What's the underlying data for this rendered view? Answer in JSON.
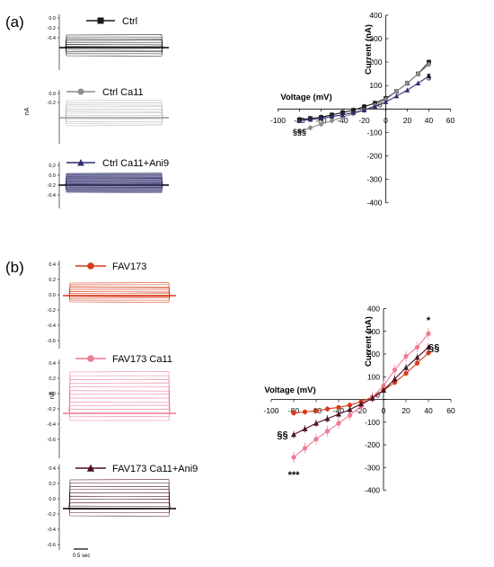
{
  "figure": {
    "panel_a": "(a)",
    "panel_b": "(b)",
    "trace_unit": "nA",
    "scale_bar": "0.5 sec",
    "trace_ticks_a": [
      "0.0",
      "-0.2",
      "-0.4"
    ],
    "trace_ticks_a_mid": [
      "0.0",
      "-0.2"
    ],
    "trace_ticks_a_low": [
      "0.2",
      "0.0",
      "-0.2",
      "-0.4"
    ],
    "trace_ticks_b_top": [
      "0.4",
      "0.2",
      "0.0",
      "-0.2",
      "-0.4",
      "-0.6"
    ],
    "trace_ticks_b_mid": [
      "0.4",
      "0.2",
      "0.0",
      "-0.2",
      "-0.4",
      "-0.6"
    ],
    "trace_ticks_b_bot": [
      "0.4",
      "0.2",
      "0.0",
      "-0.2",
      "-0.4",
      "-0.6"
    ],
    "legend_a": [
      "Ctrl",
      "Ctrl Ca11",
      "Ctrl Ca11+Ani9"
    ],
    "legend_b": [
      "FAV173",
      "FAV173 Ca11",
      "FAV173 Ca11+Ani9"
    ],
    "colors": {
      "ctrl": "#1a1a1a",
      "ctrl_ca11": "#8c8c8c",
      "ctrl_ani9": "#2f2f6e",
      "fav": "#d93a1a",
      "fav_ca11": "#f07a92",
      "fav_ani9": "#4a1220"
    }
  },
  "chart_data": [
    {
      "type": "line",
      "panel": "(a)",
      "xlabel": "Voltage (mV)",
      "ylabel": "Current (nA)",
      "xlim": [
        -100,
        60
      ],
      "ylim": [
        -400,
        400
      ],
      "x_ticks": [
        "-100",
        "-80",
        "-60",
        "-40",
        "-20",
        "0",
        "20",
        "40",
        "60"
      ],
      "y_ticks": [
        "400",
        "300",
        "200",
        "100",
        "0",
        "-100",
        "-200",
        "-300",
        "-400"
      ],
      "x": [
        -80,
        -70,
        -60,
        -50,
        -40,
        -30,
        -20,
        -10,
        0,
        10,
        20,
        30,
        40
      ],
      "series": [
        {
          "name": "Ctrl",
          "marker": "square",
          "values": [
            -45,
            -40,
            -35,
            -25,
            -15,
            -5,
            10,
            25,
            45,
            75,
            110,
            150,
            200
          ]
        },
        {
          "name": "Ctrl Ca11",
          "marker": "circle",
          "values": [
            -95,
            -80,
            -65,
            -50,
            -35,
            -20,
            -5,
            15,
            40,
            75,
            110,
            150,
            190
          ]
        },
        {
          "name": "Ctrl Ca11+Ani9",
          "marker": "triangle",
          "values": [
            -50,
            -45,
            -40,
            -32,
            -25,
            -15,
            -5,
            10,
            30,
            55,
            80,
            110,
            140
          ]
        }
      ],
      "annotations": [
        {
          "text": "§§§",
          "x": -80,
          "y": -95
        },
        {
          "text": "§",
          "x": 40,
          "y": 140
        }
      ]
    },
    {
      "type": "line",
      "panel": "(b)",
      "xlabel": "Voltage (mV)",
      "ylabel": "Current (nA)",
      "xlim": [
        -100,
        60
      ],
      "ylim": [
        -400,
        400
      ],
      "x_ticks": [
        "-100",
        "-80",
        "-60",
        "-40",
        "-20",
        "0",
        "20",
        "40",
        "60"
      ],
      "y_ticks": [
        "400",
        "300",
        "200",
        "100",
        "0",
        "-100",
        "-200",
        "-300",
        "-400"
      ],
      "x": [
        -80,
        -70,
        -60,
        -50,
        -40,
        -30,
        -20,
        -10,
        0,
        10,
        20,
        30,
        40
      ],
      "series": [
        {
          "name": "FAV173",
          "marker": "circle",
          "values": [
            -60,
            -55,
            -50,
            -42,
            -35,
            -25,
            -10,
            10,
            40,
            75,
            115,
            160,
            205
          ]
        },
        {
          "name": "FAV173 Ca11",
          "marker": "circle",
          "values": [
            -255,
            -215,
            -175,
            -140,
            -105,
            -70,
            -30,
            10,
            60,
            130,
            190,
            230,
            290
          ]
        },
        {
          "name": "FAV173 Ca11+Ani9",
          "marker": "triangle",
          "values": [
            -155,
            -130,
            -105,
            -85,
            -65,
            -45,
            -20,
            5,
            40,
            90,
            140,
            185,
            230
          ]
        }
      ],
      "annotations": [
        {
          "text": "***",
          "x": -80,
          "y": -330
        },
        {
          "text": "§§",
          "x": -90,
          "y": -155
        },
        {
          "text": "*",
          "x": 40,
          "y": 350
        },
        {
          "text": "§§",
          "x": 45,
          "y": 230
        }
      ]
    }
  ]
}
